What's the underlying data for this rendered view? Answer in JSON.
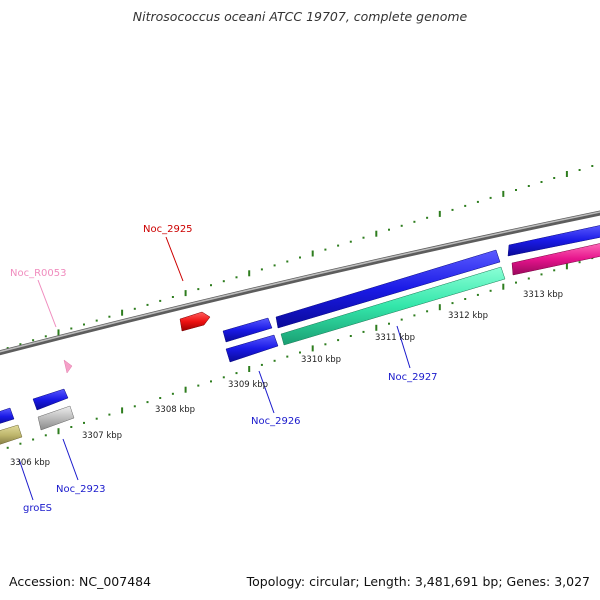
{
  "title": "Nitrosococcus oceani ATCC 19707, complete genome",
  "footer": {
    "accession": "Accession: NC_007484",
    "summary": "Topology: circular; Length: 3,481,691 bp; Genes: 3,027"
  },
  "colors": {
    "backbone": "#8a8a8a",
    "tick": "#2e7d1e",
    "blue_gene": "#1a1ae6",
    "teal_gene": "#33e6aa",
    "magenta_gene": "#e6148c",
    "red_gene": "#ee1111",
    "grey_gene": "#bdbdbd",
    "olive_gene": "#bcb46a",
    "rna_gene": "#f5a0c8"
  },
  "scale_labels": [
    "3306 kbp",
    "3307 kbp",
    "3308 kbp",
    "3309 kbp",
    "3310 kbp",
    "3311 kbp",
    "3312 kbp",
    "3313 kbp"
  ],
  "gene_labels": [
    {
      "name": "Noc_R0053",
      "color": "#f08cbe"
    },
    {
      "name": "Noc_2925",
      "color": "#cc0000"
    },
    {
      "name": "Noc_2926",
      "color": "#1a1acc"
    },
    {
      "name": "Noc_2927",
      "color": "#1a1acc"
    },
    {
      "name": "Noc_2923",
      "color": "#1a1acc"
    },
    {
      "name": "groES",
      "color": "#1a1acc"
    }
  ]
}
